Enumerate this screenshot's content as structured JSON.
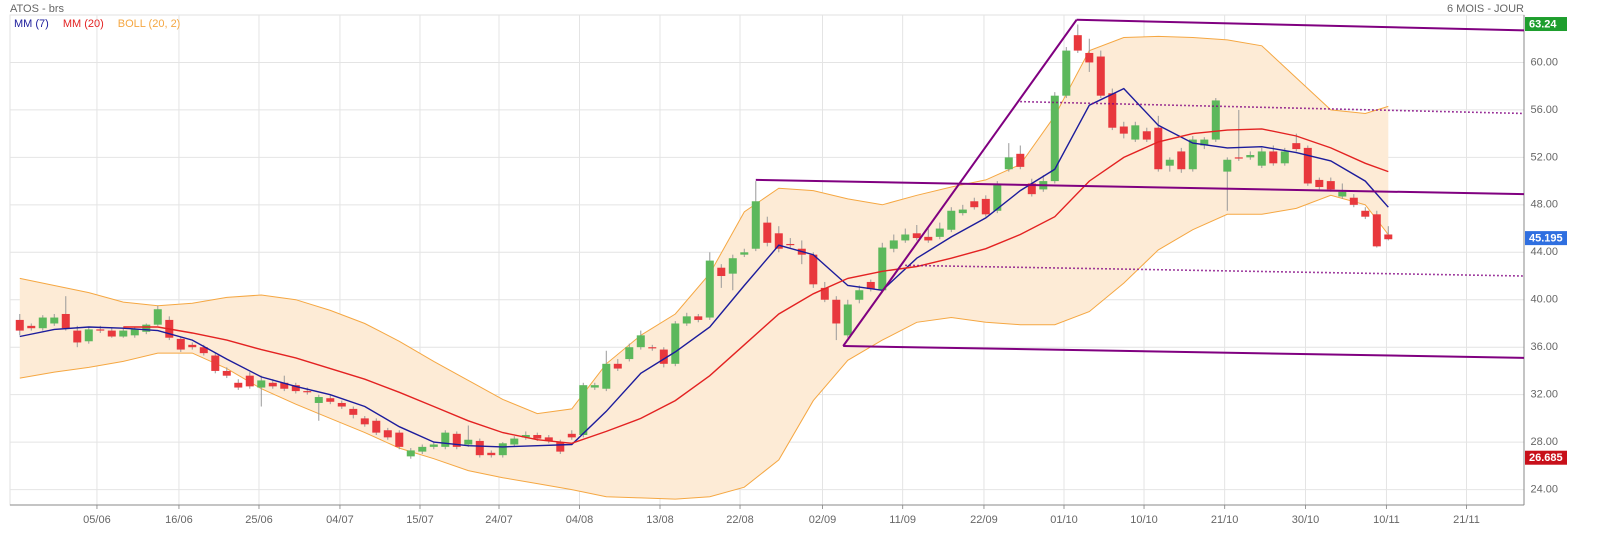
{
  "chart_data": {
    "type": "candlestick",
    "title": "ATOS - brs",
    "period": "6 MOIS - JOUR",
    "colors": {
      "up": "#5cb85c",
      "down": "#e8383d"
    },
    "xlim": [
      -0.85,
      130.8
    ],
    "ylim": [
      22.7,
      64.0
    ],
    "grid": true,
    "xticks": [
      {
        "value": 6.71,
        "label": "05/06"
      },
      {
        "value": 13.84,
        "label": "16/06"
      },
      {
        "value": 20.8,
        "label": "25/06"
      },
      {
        "value": 27.84,
        "label": "04/07"
      },
      {
        "value": 34.8,
        "label": "15/07"
      },
      {
        "value": 41.67,
        "label": "24/07"
      },
      {
        "value": 48.67,
        "label": "04/08"
      },
      {
        "value": 55.67,
        "label": "13/08"
      },
      {
        "value": 62.63,
        "label": "22/08"
      },
      {
        "value": 69.8,
        "label": "02/09"
      },
      {
        "value": 76.77,
        "label": "11/09"
      },
      {
        "value": 83.84,
        "label": "22/09"
      },
      {
        "value": 90.8,
        "label": "01/10"
      },
      {
        "value": 97.76,
        "label": "10/10"
      },
      {
        "value": 104.77,
        "label": "21/10"
      },
      {
        "value": 111.8,
        "label": "30/10"
      },
      {
        "value": 118.84,
        "label": "10/11"
      },
      {
        "value": 125.8,
        "label": "21/11"
      }
    ],
    "yticks": [
      {
        "value": 24,
        "label": "24.00"
      },
      {
        "value": 28,
        "label": "28.00"
      },
      {
        "value": 32,
        "label": "32.00"
      },
      {
        "value": 36,
        "label": "36.00"
      },
      {
        "value": 40,
        "label": "40.00"
      },
      {
        "value": 44,
        "label": "44.00"
      },
      {
        "value": 48,
        "label": "48.00"
      },
      {
        "value": 52,
        "label": "52.00"
      },
      {
        "value": 56,
        "label": "56.00"
      },
      {
        "value": 60,
        "label": "60.00"
      }
    ],
    "ohlc": [
      [
        38.3,
        38.8,
        37.0,
        37.4
      ],
      [
        37.8,
        38.0,
        37.4,
        37.6
      ],
      [
        37.6,
        38.7,
        37.4,
        38.5
      ],
      [
        38.0,
        38.8,
        37.8,
        38.5
      ],
      [
        38.8,
        40.3,
        37.4,
        37.6
      ],
      [
        37.4,
        37.8,
        36.0,
        36.4
      ],
      [
        36.5,
        37.7,
        36.3,
        37.5
      ],
      [
        37.5,
        37.8,
        37.2,
        37.4
      ],
      [
        37.4,
        37.6,
        36.8,
        36.9
      ],
      [
        36.9,
        37.6,
        36.8,
        37.4
      ],
      [
        37.0,
        37.7,
        36.8,
        37.5
      ],
      [
        37.3,
        38.0,
        37.1,
        37.9
      ],
      [
        37.9,
        39.5,
        37.8,
        39.2
      ],
      [
        38.3,
        38.6,
        36.6,
        36.8
      ],
      [
        36.7,
        36.9,
        35.6,
        35.8
      ],
      [
        36.2,
        36.4,
        35.8,
        36.0
      ],
      [
        36.0,
        36.2,
        35.3,
        35.5
      ],
      [
        35.3,
        35.5,
        33.8,
        34.0
      ],
      [
        34.0,
        34.3,
        33.4,
        33.6
      ],
      [
        33.0,
        33.3,
        32.4,
        32.6
      ],
      [
        33.6,
        33.9,
        32.5,
        32.7
      ],
      [
        32.6,
        33.6,
        31.0,
        33.2
      ],
      [
        33.0,
        33.3,
        32.5,
        32.7
      ],
      [
        33.0,
        33.6,
        32.3,
        32.5
      ],
      [
        32.8,
        33.0,
        32.1,
        32.3
      ],
      [
        32.3,
        32.6,
        32.0,
        32.2
      ],
      [
        31.3,
        32.0,
        29.8,
        31.8
      ],
      [
        31.7,
        32.0,
        31.2,
        31.4
      ],
      [
        31.3,
        31.5,
        30.8,
        31.0
      ],
      [
        30.8,
        31.0,
        30.0,
        30.3
      ],
      [
        30.0,
        30.2,
        29.3,
        29.5
      ],
      [
        29.8,
        30.0,
        28.6,
        28.8
      ],
      [
        29.0,
        29.2,
        28.2,
        28.4
      ],
      [
        28.8,
        29.0,
        27.4,
        27.6
      ],
      [
        26.8,
        27.5,
        26.6,
        27.3
      ],
      [
        27.2,
        27.8,
        27.0,
        27.6
      ],
      [
        27.6,
        28.0,
        27.4,
        27.8
      ],
      [
        27.6,
        29.0,
        27.4,
        28.8
      ],
      [
        28.7,
        28.9,
        27.4,
        27.6
      ],
      [
        27.8,
        29.4,
        27.6,
        28.2
      ],
      [
        28.1,
        28.3,
        26.7,
        26.9
      ],
      [
        27.1,
        27.3,
        26.7,
        26.9
      ],
      [
        26.9,
        28.0,
        26.7,
        27.9
      ],
      [
        27.8,
        28.5,
        27.6,
        28.3
      ],
      [
        28.4,
        28.9,
        28.2,
        28.6
      ],
      [
        28.6,
        28.8,
        28.1,
        28.3
      ],
      [
        28.4,
        28.6,
        27.9,
        28.1
      ],
      [
        28.0,
        28.2,
        27.0,
        27.2
      ],
      [
        28.7,
        29.0,
        28.2,
        28.4
      ],
      [
        28.6,
        33.0,
        28.4,
        32.8
      ],
      [
        32.6,
        33.0,
        32.4,
        32.8
      ],
      [
        32.5,
        35.7,
        32.3,
        34.6
      ],
      [
        34.6,
        35.0,
        34.0,
        34.2
      ],
      [
        35.0,
        36.3,
        34.8,
        36.0
      ],
      [
        36.0,
        37.4,
        35.8,
        37.0
      ],
      [
        36.0,
        36.2,
        35.7,
        35.9
      ],
      [
        35.8,
        36.0,
        34.3,
        34.6
      ],
      [
        34.6,
        38.2,
        34.4,
        38.0
      ],
      [
        38.0,
        38.9,
        37.8,
        38.6
      ],
      [
        38.6,
        38.8,
        38.1,
        38.3
      ],
      [
        38.5,
        44.0,
        38.3,
        43.3
      ],
      [
        42.7,
        43.0,
        41.0,
        42.0
      ],
      [
        42.2,
        43.8,
        40.8,
        43.5
      ],
      [
        43.8,
        44.3,
        43.6,
        44.0
      ],
      [
        44.3,
        50.0,
        44.1,
        48.3
      ],
      [
        46.5,
        47.0,
        44.5,
        44.8
      ],
      [
        45.6,
        46.2,
        44.0,
        44.3
      ],
      [
        44.7,
        45.2,
        44.4,
        44.6
      ],
      [
        44.3,
        45.0,
        43.0,
        43.8
      ],
      [
        43.8,
        44.0,
        41.0,
        41.3
      ],
      [
        41.0,
        41.5,
        39.8,
        40.0
      ],
      [
        40.0,
        40.3,
        36.6,
        38.0
      ],
      [
        37.0,
        40.0,
        36.8,
        39.6
      ],
      [
        40.0,
        41.2,
        39.7,
        40.8
      ],
      [
        41.5,
        41.7,
        40.7,
        40.9
      ],
      [
        40.8,
        44.8,
        40.6,
        44.4
      ],
      [
        44.3,
        45.5,
        44.0,
        45.0
      ],
      [
        45.0,
        46.0,
        44.8,
        45.5
      ],
      [
        45.6,
        46.3,
        45.0,
        45.2
      ],
      [
        45.3,
        46.0,
        44.8,
        45.0
      ],
      [
        45.3,
        46.5,
        45.1,
        46.0
      ],
      [
        45.9,
        47.8,
        45.7,
        47.5
      ],
      [
        47.3,
        48.0,
        47.1,
        47.6
      ],
      [
        48.3,
        48.6,
        47.6,
        47.8
      ],
      [
        48.5,
        48.8,
        47.0,
        47.2
      ],
      [
        47.5,
        50.0,
        47.3,
        49.8
      ],
      [
        51.0,
        53.2,
        50.8,
        52.0
      ],
      [
        52.3,
        53.0,
        51.0,
        51.2
      ],
      [
        49.8,
        50.2,
        48.7,
        48.9
      ],
      [
        49.3,
        50.5,
        49.1,
        50.0
      ],
      [
        50.0,
        57.5,
        49.8,
        57.2
      ],
      [
        57.2,
        61.3,
        57.0,
        61.0
      ],
      [
        62.3,
        63.2,
        60.8,
        61.0
      ],
      [
        60.8,
        62.0,
        59.2,
        60.0
      ],
      [
        60.5,
        61.0,
        57.0,
        57.2
      ],
      [
        57.4,
        57.8,
        54.3,
        54.5
      ],
      [
        54.6,
        55.0,
        53.6,
        54.0
      ],
      [
        53.5,
        55.0,
        53.3,
        54.7
      ],
      [
        54.2,
        54.5,
        53.3,
        53.5
      ],
      [
        54.5,
        55.5,
        50.8,
        51.0
      ],
      [
        51.3,
        52.0,
        50.8,
        51.8
      ],
      [
        52.5,
        52.8,
        50.7,
        51.0
      ],
      [
        51.0,
        53.8,
        50.8,
        53.5
      ],
      [
        53.0,
        53.7,
        52.7,
        53.5
      ],
      [
        53.5,
        57.0,
        53.3,
        56.8
      ],
      [
        50.8,
        52.0,
        47.5,
        51.8
      ],
      [
        52.0,
        56.0,
        51.7,
        51.9
      ],
      [
        52.0,
        52.5,
        51.8,
        52.2
      ],
      [
        51.3,
        52.8,
        51.1,
        52.5
      ],
      [
        52.5,
        53.0,
        51.3,
        51.5
      ],
      [
        51.5,
        52.8,
        51.3,
        52.5
      ],
      [
        53.2,
        54.0,
        52.5,
        52.7
      ],
      [
        52.8,
        53.0,
        49.6,
        49.8
      ],
      [
        50.1,
        50.3,
        49.3,
        49.5
      ],
      [
        50.0,
        50.3,
        49.1,
        49.3
      ],
      [
        48.7,
        49.8,
        48.5,
        49.1
      ],
      [
        48.6,
        48.9,
        47.8,
        48.0
      ],
      [
        47.5,
        47.8,
        46.8,
        47.0
      ],
      [
        47.2,
        47.5,
        44.4,
        44.5
      ],
      [
        45.5,
        46.2,
        45.0,
        45.1
      ]
    ],
    "line_x": [
      0,
      3,
      6,
      9,
      12,
      15,
      18,
      21,
      24,
      27,
      30,
      33,
      36,
      39,
      42,
      45,
      48,
      51,
      54,
      57,
      60,
      63,
      66,
      69,
      72,
      75,
      78,
      81,
      84,
      87,
      90,
      93,
      96,
      99,
      102,
      105,
      108,
      111,
      114,
      117,
      119
    ],
    "series": [
      {
        "name": "MM (7)",
        "color": "#1c1c9c",
        "values": [
          36.9,
          37.5,
          37.7,
          37.6,
          37.4,
          36.6,
          35.0,
          33.5,
          32.7,
          32.0,
          31.0,
          29.3,
          28.0,
          27.7,
          27.6,
          27.7,
          27.8,
          30.6,
          33.8,
          35.6,
          37.7,
          41.2,
          44.6,
          43.8,
          41.2,
          40.8,
          43.5,
          45.3,
          46.9,
          49.2,
          51.0,
          56.4,
          57.8,
          54.7,
          53.2,
          52.8,
          52.9,
          52.4,
          51.7,
          50.0,
          47.8
        ]
      },
      {
        "name": "MM (20)",
        "color": "#e32222",
        "values": [
          null,
          null,
          null,
          37.7,
          37.7,
          37.2,
          36.6,
          35.8,
          35.1,
          34.2,
          33.3,
          32.2,
          31.0,
          29.8,
          28.8,
          28.2,
          27.9,
          28.9,
          30.0,
          31.5,
          33.6,
          36.2,
          38.8,
          40.5,
          41.8,
          42.4,
          42.8,
          43.5,
          44.3,
          45.5,
          47.0,
          50.0,
          52.0,
          53.3,
          54.0,
          54.3,
          54.4,
          53.8,
          52.8,
          51.5,
          50.8
        ]
      },
      {
        "name": "BOLL (20, 2)",
        "color": "#f5a742",
        "fill": "#fdebd6",
        "upper": [
          41.8,
          41.2,
          40.6,
          39.8,
          39.5,
          39.7,
          40.2,
          40.4,
          40.0,
          39.1,
          38.0,
          36.5,
          34.8,
          33.2,
          31.6,
          30.4,
          30.8,
          34.6,
          37.0,
          38.8,
          42.2,
          47.4,
          49.4,
          49.2,
          48.5,
          48.0,
          48.8,
          49.5,
          50.1,
          51.4,
          55.5,
          61.0,
          62.1,
          62.2,
          62.1,
          61.9,
          61.4,
          58.7,
          56.0,
          55.7,
          56.3
        ],
        "lower": [
          33.4,
          33.9,
          34.3,
          34.8,
          35.5,
          35.5,
          34.2,
          32.5,
          31.2,
          30.0,
          28.8,
          27.5,
          26.6,
          25.6,
          25.0,
          24.5,
          24.0,
          23.4,
          23.3,
          23.2,
          23.4,
          24.2,
          26.5,
          31.5,
          34.9,
          36.6,
          38.1,
          38.5,
          38.1,
          37.9,
          37.9,
          39.0,
          41.4,
          44.2,
          45.9,
          47.2,
          47.2,
          47.7,
          48.8,
          48.0,
          45.5
        ]
      }
    ],
    "trendlines": [
      {
        "x": [
          64.0,
          130.8
        ],
        "y": [
          50.1,
          48.9
        ],
        "dotted": false
      },
      {
        "x": [
          71.6,
          91.9
        ],
        "y": [
          36.1,
          63.6
        ],
        "dotted": false
      },
      {
        "x": [
          91.9,
          130.8
        ],
        "y": [
          63.6,
          62.7
        ],
        "dotted": false
      },
      {
        "x": [
          71.6,
          130.8
        ],
        "y": [
          36.1,
          35.1
        ],
        "dotted": false
      },
      {
        "x": [
          87.0,
          130.8
        ],
        "y": [
          56.7,
          55.7
        ],
        "dotted": true
      },
      {
        "x": [
          77.0,
          130.8
        ],
        "y": [
          42.9,
          42.0
        ],
        "dotted": true
      }
    ],
    "trendline_color": "#800080",
    "price_labels": [
      {
        "value": 63.24,
        "color": "#1e9e2e"
      },
      {
        "value": 45.195,
        "color": "#2f6fe0"
      },
      {
        "value": 26.685,
        "color": "#c8101a"
      }
    ]
  }
}
